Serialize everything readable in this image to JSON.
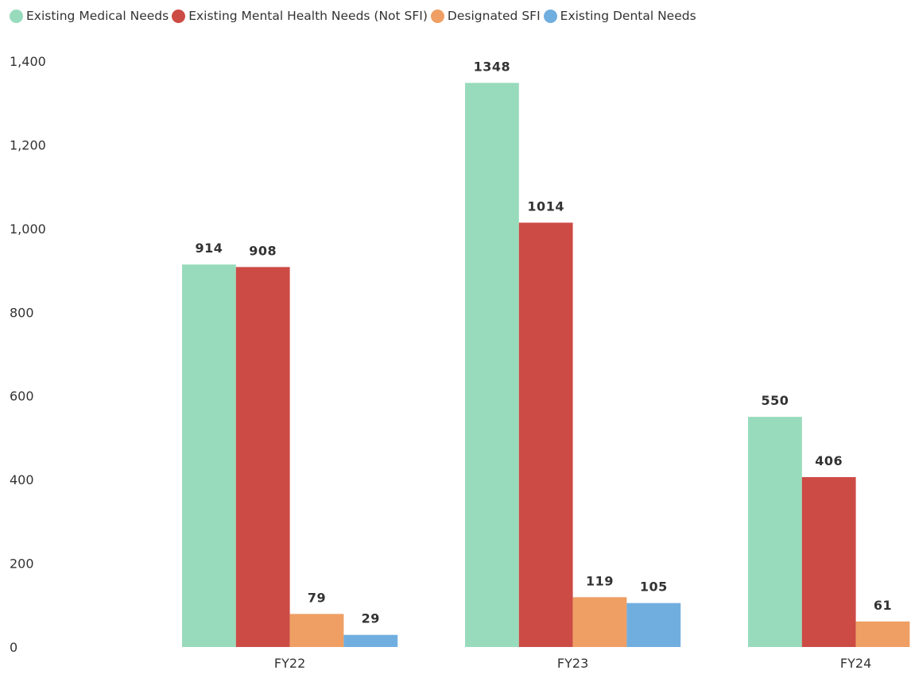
{
  "chart_data": {
    "type": "bar",
    "title": "",
    "xlabel": "",
    "ylabel": "",
    "categories": [
      "FY22",
      "FY23",
      "FY24"
    ],
    "series": [
      {
        "name": "Existing Medical Needs",
        "color": "#98DBBC",
        "values": [
          914,
          1348,
          550
        ]
      },
      {
        "name": "Existing Mental Health Needs (Not SFI)",
        "color": "#CD4B45",
        "values": [
          908,
          1014,
          406
        ]
      },
      {
        "name": "Designated SFI",
        "color": "#EF9F63",
        "values": [
          79,
          119,
          61
        ]
      },
      {
        "name": "Existing Dental Needs",
        "color": "#70AEE0",
        "values": [
          29,
          105,
          null
        ]
      }
    ],
    "y_ticks": [
      "0",
      "200",
      "400",
      "600",
      "800",
      "1,000",
      "1,200",
      "1,400"
    ],
    "ylim": [
      0,
      1400
    ],
    "grid": false,
    "legend_position": "top-left"
  }
}
